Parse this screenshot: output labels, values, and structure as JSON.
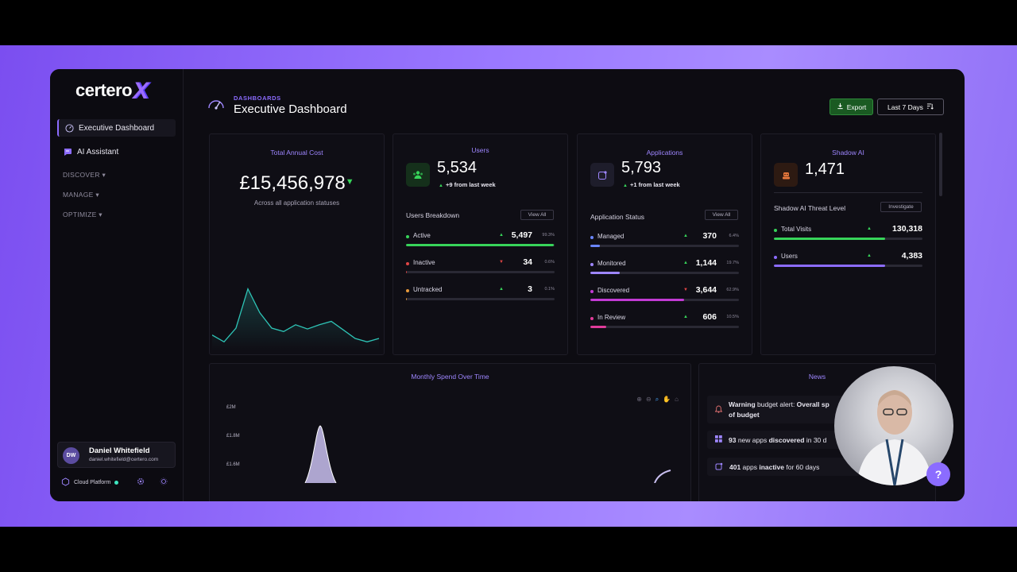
{
  "app": {
    "logo_text": "certero",
    "logo_mark": "X"
  },
  "sidebar": {
    "items": [
      {
        "label": "Executive Dashboard",
        "icon": "gauge-icon"
      },
      {
        "label": "AI Assistant",
        "icon": "chat-bubble-icon"
      }
    ],
    "groups": [
      "DISCOVER",
      "MANAGE",
      "OPTIMIZE"
    ],
    "user": {
      "initials": "DW",
      "name": "Daniel Whitefield",
      "email": "daniel.whitefield@certero.com"
    },
    "platform_label": "Cloud Platform"
  },
  "header": {
    "breadcrumb": "DASHBOARDS",
    "title": "Executive Dashboard",
    "export_label": "Export",
    "range_label": "Last 7 Days"
  },
  "cost_card": {
    "title": "Total Annual Cost",
    "value": "£15,456,978",
    "subtitle": "Across all application statuses",
    "sparkline": [
      18,
      10,
      26,
      72,
      44,
      26,
      22,
      30,
      25,
      30,
      34,
      24,
      14,
      10,
      14
    ]
  },
  "users_card": {
    "title": "Users",
    "value": "5,534",
    "delta": "+9 from last week",
    "section_title": "Users Breakdown",
    "view_all": "View All",
    "rows": [
      {
        "label": "Active",
        "value": "5,497",
        "pct": "99.3%",
        "trend": "up",
        "fill": 0.993,
        "color": "#37d45a"
      },
      {
        "label": "Inactive",
        "value": "34",
        "pct": "0.6%",
        "trend": "down",
        "fill": 0.006,
        "color": "#e04545"
      },
      {
        "label": "Untracked",
        "value": "3",
        "pct": "0.1%",
        "trend": "up",
        "fill": 0.001,
        "color": "#e89a3c"
      }
    ]
  },
  "apps_card": {
    "title": "Applications",
    "value": "5,793",
    "delta": "+1 from last week",
    "section_title": "Application Status",
    "view_all": "View All",
    "rows": [
      {
        "label": "Managed",
        "value": "370",
        "pct": "6.4%",
        "trend": "up",
        "fill": 0.064,
        "color": "#6a86ff"
      },
      {
        "label": "Monitored",
        "value": "1,144",
        "pct": "19.7%",
        "trend": "up",
        "fill": 0.197,
        "color": "#9e86ff"
      },
      {
        "label": "Discovered",
        "value": "3,644",
        "pct": "62.9%",
        "trend": "down",
        "fill": 0.629,
        "color": "#c23bd4"
      },
      {
        "label": "In Review",
        "value": "606",
        "pct": "10.5%",
        "trend": "up",
        "fill": 0.105,
        "color": "#e03b9a"
      }
    ]
  },
  "shadow_card": {
    "title": "Shadow AI",
    "value": "1,471",
    "section_title": "Shadow AI Threat Level",
    "investigate": "Investigate",
    "rows": [
      {
        "label": "Total Visits",
        "value": "130,318",
        "trend": "up",
        "fill": 0.75,
        "color": "#37d45a"
      },
      {
        "label": "Users",
        "value": "4,383",
        "trend": "up",
        "fill": 0.75,
        "color": "#8c6cff"
      }
    ]
  },
  "spend_card": {
    "title": "Monthly Spend Over Time",
    "y_ticks": [
      "£2M",
      "£1.8M",
      "£1.6M"
    ]
  },
  "news_card": {
    "title": "News",
    "items": [
      {
        "icon": "bell-icon",
        "pre": "",
        "bold": "Warning",
        "mid": " budget alert: ",
        "bold2": "Overall sp",
        "line2": "of budget"
      },
      {
        "icon": "grid-icon",
        "pre": "93",
        "bold": "",
        "mid": " new apps ",
        "bold2": "discovered",
        "post": " in 30 d",
        "line2": ""
      },
      {
        "icon": "app-window-icon",
        "pre": "401",
        "bold": "",
        "mid": " apps ",
        "bold2": "inactive",
        "post": " for 60 days",
        "line2": ""
      }
    ]
  },
  "colors": {
    "accent": "#8c6cff",
    "positive": "#37d45a",
    "negative": "#e04545",
    "export_bg": "#1a5a22"
  }
}
